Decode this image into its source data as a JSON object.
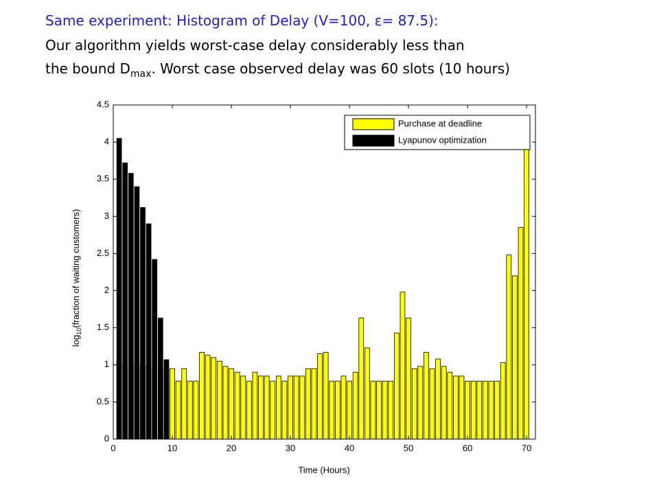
{
  "heading": {
    "line1": "Same experiment: Histogram of Delay (V=100, ε= 87.5):",
    "line2": "Our algorithm yields worst-case delay considerably less than",
    "line3": [
      "the bound D",
      "max",
      ".  Worst case observed delay was 60 slots (10 hours)"
    ]
  },
  "chart_data": {
    "type": "bar",
    "x": [
      1,
      2,
      3,
      4,
      5,
      6,
      7,
      8,
      9,
      10,
      11,
      12,
      13,
      14,
      15,
      16,
      17,
      18,
      19,
      20,
      21,
      22,
      23,
      24,
      25,
      26,
      27,
      28,
      29,
      30,
      31,
      32,
      33,
      34,
      35,
      36,
      37,
      38,
      39,
      40,
      41,
      42,
      43,
      44,
      45,
      46,
      47,
      48,
      49,
      50,
      51,
      52,
      53,
      54,
      55,
      56,
      57,
      58,
      59,
      60,
      61,
      62,
      63,
      64,
      65,
      66,
      67,
      68,
      69,
      70
    ],
    "series": [
      {
        "name": "Purchase at deadline",
        "color": "#ffff00",
        "values": [
          1.05,
          1.02,
          1.0,
          1.0,
          0.98,
          0.97,
          0.96,
          0.95,
          0.95,
          0.95,
          0.78,
          0.95,
          0.78,
          0.78,
          1.17,
          1.13,
          1.1,
          1.05,
          0.98,
          0.95,
          0.9,
          0.85,
          0.78,
          0.9,
          0.85,
          0.85,
          0.78,
          0.85,
          0.78,
          0.85,
          0.85,
          0.85,
          0.95,
          0.95,
          1.15,
          1.17,
          0.78,
          0.78,
          0.85,
          0.78,
          0.9,
          1.63,
          1.23,
          0.78,
          0.78,
          0.78,
          0.78,
          1.43,
          1.98,
          1.63,
          0.95,
          0.98,
          1.17,
          0.95,
          1.08,
          0.98,
          0.9,
          0.85,
          0.85,
          0.78,
          0.78,
          0.78,
          0.78,
          0.78,
          0.78,
          1.03,
          2.48,
          2.2,
          2.85,
          3.95
        ]
      },
      {
        "name": "Lyapunov optimization",
        "color": "#000000",
        "values": [
          4.05,
          3.72,
          3.58,
          3.4,
          3.12,
          2.9,
          2.42,
          1.63,
          1.07,
          null,
          null,
          null,
          null,
          null,
          null,
          null,
          null,
          null,
          null,
          null,
          null,
          null,
          null,
          null,
          null,
          null,
          null,
          null,
          null,
          null,
          null,
          null,
          null,
          null,
          null,
          null,
          null,
          null,
          null,
          null,
          null,
          null,
          null,
          null,
          null,
          null,
          null,
          null,
          null,
          null,
          null,
          null,
          null,
          null,
          null,
          null,
          null,
          null,
          null,
          null,
          null,
          null,
          null,
          null,
          null,
          null,
          null,
          null,
          null,
          null
        ]
      }
    ],
    "xlabel": "Time (Hours)",
    "ylabel": [
      "log",
      "10",
      "(fraction of waiting customers)"
    ],
    "xlim": [
      0,
      71.5
    ],
    "xticks": [
      0,
      10,
      20,
      30,
      40,
      50,
      60,
      70
    ],
    "ylim": [
      0,
      4.5
    ],
    "yticks": [
      0,
      0.5,
      1,
      1.5,
      2,
      2.5,
      3,
      3.5,
      4,
      4.5
    ],
    "legend": "upper right"
  }
}
